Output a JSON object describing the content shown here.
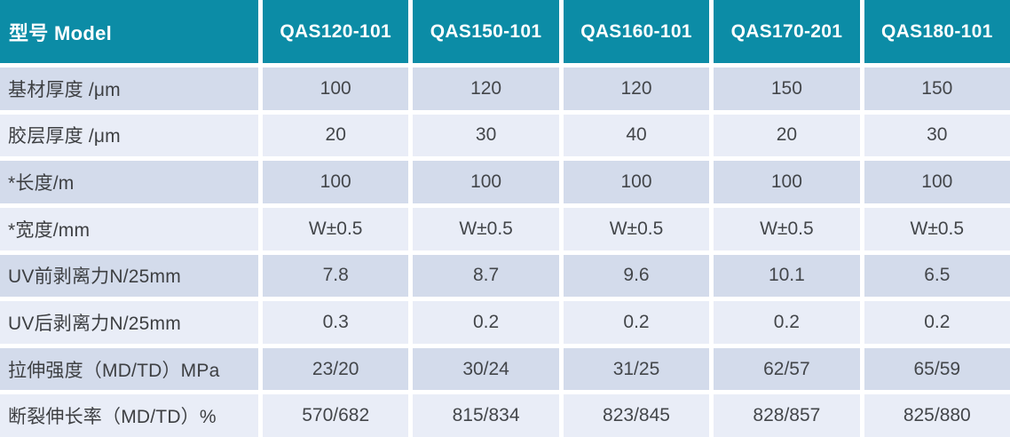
{
  "table": {
    "title": "Product specification table",
    "header": {
      "model_label": "型号 Model",
      "columns": [
        "QAS120-101",
        "QAS150-101",
        "QAS160-101",
        "QAS170-201",
        "QAS180-101"
      ]
    },
    "rows": [
      {
        "label": "基材厚度  /μm",
        "values": [
          "100",
          "120",
          "120",
          "150",
          "150"
        ]
      },
      {
        "label": "胶层厚度 /μm",
        "values": [
          "20",
          "30",
          "40",
          "20",
          "30"
        ]
      },
      {
        "label": "*长度/m",
        "values": [
          "100",
          "100",
          "100",
          "100",
          "100"
        ]
      },
      {
        "label": "*宽度/mm",
        "values": [
          "W±0.5",
          "W±0.5",
          "W±0.5",
          "W±0.5",
          "W±0.5"
        ]
      },
      {
        "label": "UV前剥离力N/25mm",
        "values": [
          "7.8",
          "8.7",
          "9.6",
          "10.1",
          "6.5"
        ]
      },
      {
        "label": "UV后剥离力N/25mm",
        "values": [
          "0.3",
          "0.2",
          "0.2",
          "0.2",
          "0.2"
        ]
      },
      {
        "label": "拉伸强度（MD/TD）MPa",
        "values": [
          "23/20",
          "30/24",
          "31/25",
          "62/57",
          "65/59"
        ]
      },
      {
        "label": "断裂伸长率（MD/TD）%",
        "values": [
          "570/682",
          "815/834",
          "823/845",
          "828/857",
          "825/880"
        ]
      }
    ],
    "colors": {
      "header_bg": "#0c8ca6",
      "header_text": "#ffffff",
      "row_odd_bg": "#d3dbeb",
      "row_even_bg": "#e9edf7",
      "body_text": "#3d3f42",
      "gap": "#ffffff"
    }
  }
}
